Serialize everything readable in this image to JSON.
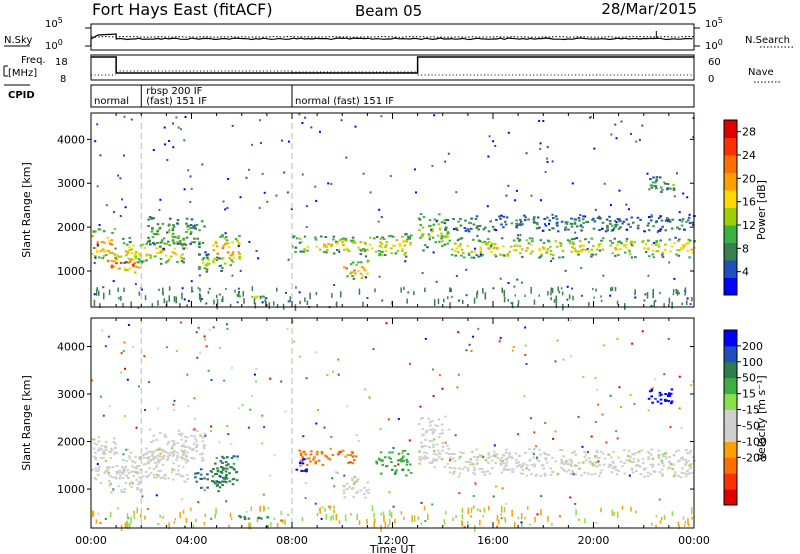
{
  "header": {
    "station": "Fort Hays East (fitACF)",
    "beam": "Beam 05",
    "date": "28/Mar/2015"
  },
  "summary": {
    "nsky_label": "N.Sky",
    "nsearch_label": "N.Search",
    "noise_ticks_left": [
      "10^5",
      "10^0"
    ],
    "noise_ticks_right": [
      "10^5",
      "10^0"
    ],
    "freq_label_1": "Freq.",
    "freq_label_2": "[MHz]",
    "freq_ticks": [
      "18",
      "8"
    ],
    "nave_label": "Nave",
    "nave_ticks": [
      "60",
      "0"
    ],
    "cpid_label": "CPID",
    "cpid_segments": [
      {
        "label_1": "normal",
        "label_2": "",
        "start_hour": 0
      },
      {
        "label_1": "rbsp 200 IF",
        "label_2": "(fast) 151 IF",
        "start_hour": 2
      },
      {
        "label_1": "normal (fast) 151 IF",
        "label_2": "",
        "start_hour": 8
      }
    ]
  },
  "chart_data": [
    {
      "type": "heatmap",
      "name": "power-panel",
      "ylabel": "Slant Range [km]",
      "ylim": [
        180,
        4600
      ],
      "yticks": [
        1000,
        2000,
        3000,
        4000
      ],
      "xlim": [
        0,
        24
      ],
      "colorbar_label": "Power [dB]",
      "colorbar_ticks": [
        "28",
        "24",
        "20",
        "16",
        "12",
        "8",
        "4"
      ],
      "colorbar_range": [
        0,
        30
      ],
      "colors": [
        "#0000ff",
        "#1f4fbf",
        "#3a7f50",
        "#3cb043",
        "#9fd100",
        "#ffd800",
        "#ffa000",
        "#ff7000",
        "#ff3000",
        "#e00000"
      ],
      "echo_regions": [
        {
          "t": [
            0.0,
            1.0
          ],
          "r": [
            1200,
            2050
          ],
          "v": 20
        },
        {
          "t": [
            0.6,
            2.0
          ],
          "r": [
            950,
            1400
          ],
          "v": 22
        },
        {
          "t": [
            1.2,
            3.8
          ],
          "r": [
            1150,
            1800
          ],
          "v": 16
        },
        {
          "t": [
            2.2,
            4.5
          ],
          "r": [
            1500,
            2300
          ],
          "v": 10
        },
        {
          "t": [
            4.1,
            5.3
          ],
          "r": [
            1000,
            1450
          ],
          "v": 14
        },
        {
          "t": [
            4.8,
            5.9
          ],
          "r": [
            1100,
            1900
          ],
          "v": 20
        },
        {
          "t": [
            5.8,
            7.0
          ],
          "r": [
            400,
            450
          ],
          "v": 12
        },
        {
          "t": [
            8.0,
            11.7
          ],
          "r": [
            1400,
            1850
          ],
          "v": 18
        },
        {
          "t": [
            10.0,
            11.0
          ],
          "r": [
            800,
            1300
          ],
          "v": 20
        },
        {
          "t": [
            11.4,
            12.7
          ],
          "r": [
            1300,
            1900
          ],
          "v": 16
        },
        {
          "t": [
            13.0,
            14.2
          ],
          "r": [
            1450,
            2450
          ],
          "v": 12
        },
        {
          "t": [
            14.2,
            24.0
          ],
          "r": [
            1300,
            1800
          ],
          "v": 17
        },
        {
          "t": [
            14.0,
            24.0
          ],
          "r": [
            1900,
            2300
          ],
          "v": 6
        },
        {
          "t": [
            22.0,
            23.2
          ],
          "r": [
            2800,
            3200
          ],
          "v": 10
        }
      ]
    },
    {
      "type": "heatmap",
      "name": "velocity-panel",
      "ylabel": "Slant Range [km]",
      "ylim": [
        180,
        4600
      ],
      "yticks": [
        1000,
        2000,
        3000,
        4000
      ],
      "xlim": [
        0,
        24
      ],
      "xticks": [
        "00:00",
        "04:00",
        "08:00",
        "12:00",
        "16:00",
        "20:00",
        "00:00"
      ],
      "xlabel": "Time UT",
      "colorbar_label": "Velocity [m s⁻¹]",
      "colorbar_ticks": [
        "200",
        "100",
        "50",
        "15",
        "-15",
        "-50",
        "-100",
        "-200"
      ],
      "colors": [
        "#e00000",
        "#ff3000",
        "#ff7000",
        "#ffa000",
        "#cfcfcf",
        "#cfcfcf",
        "#8be04a",
        "#3cb043",
        "#2a7f4a",
        "#1f4fbf",
        "#0000ff"
      ],
      "echo_regions": [
        {
          "t": [
            0.0,
            1.0
          ],
          "r": [
            1100,
            2200
          ],
          "v": 0
        },
        {
          "t": [
            0.6,
            2.0
          ],
          "r": [
            900,
            1500
          ],
          "v": 0
        },
        {
          "t": [
            1.2,
            3.8
          ],
          "r": [
            1150,
            1900
          ],
          "v": 0
        },
        {
          "t": [
            2.2,
            4.5
          ],
          "r": [
            1500,
            2300
          ],
          "v": 0
        },
        {
          "t": [
            4.1,
            5.3
          ],
          "r": [
            950,
            1500
          ],
          "v": 70
        },
        {
          "t": [
            4.8,
            5.9
          ],
          "r": [
            1100,
            1800
          ],
          "v": 60
        },
        {
          "t": [
            5.8,
            7.0
          ],
          "r": [
            380,
            470
          ],
          "v": 80
        },
        {
          "t": [
            8.0,
            8.6
          ],
          "r": [
            1350,
            1700
          ],
          "v": 220
        },
        {
          "t": [
            8.2,
            10.5
          ],
          "r": [
            1500,
            1900
          ],
          "v": -60
        },
        {
          "t": [
            10.0,
            11.0
          ],
          "r": [
            800,
            1300
          ],
          "v": 0
        },
        {
          "t": [
            11.3,
            12.7
          ],
          "r": [
            1300,
            1900
          ],
          "v": 40
        },
        {
          "t": [
            13.0,
            14.2
          ],
          "r": [
            1450,
            2600
          ],
          "v": 0
        },
        {
          "t": [
            14.2,
            24.0
          ],
          "r": [
            1250,
            1900
          ],
          "v": 0
        },
        {
          "t": [
            22.0,
            23.2
          ],
          "r": [
            2800,
            3200
          ],
          "v": 220
        }
      ]
    }
  ]
}
